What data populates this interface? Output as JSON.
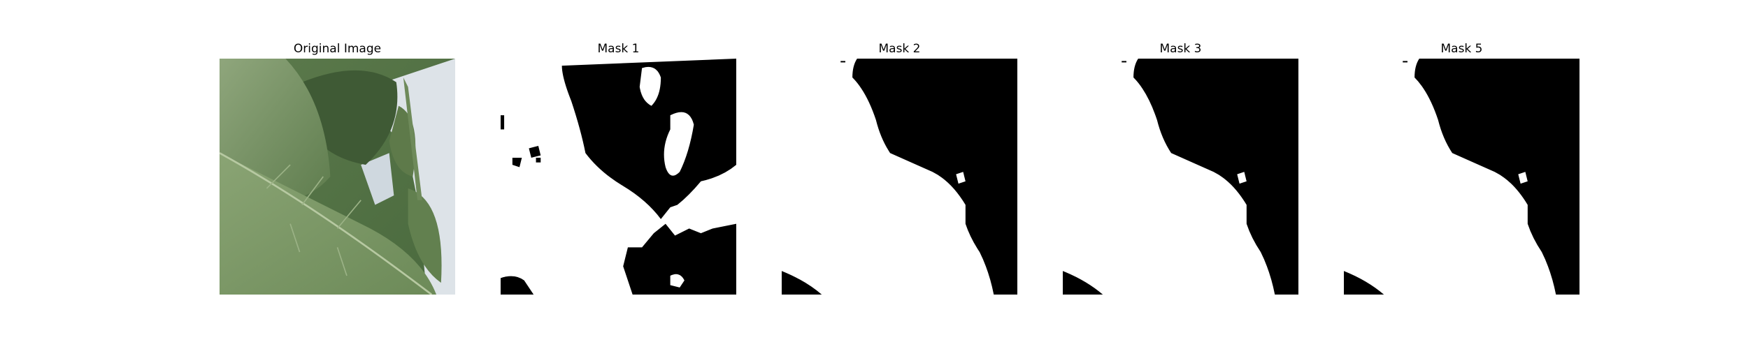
{
  "figure": {
    "panels": [
      {
        "title": "Original Image"
      },
      {
        "title": "Mask 1"
      },
      {
        "title": "Mask 2"
      },
      {
        "title": "Mask 3"
      },
      {
        "title": "Mask 5"
      }
    ]
  },
  "colors": {
    "background": "#ffffff",
    "mask_foreground": "#ffffff",
    "mask_background": "#000000",
    "leaf_light": "#7f9a68",
    "leaf_dark": "#3f5a35",
    "sky": "#dde3e8"
  }
}
